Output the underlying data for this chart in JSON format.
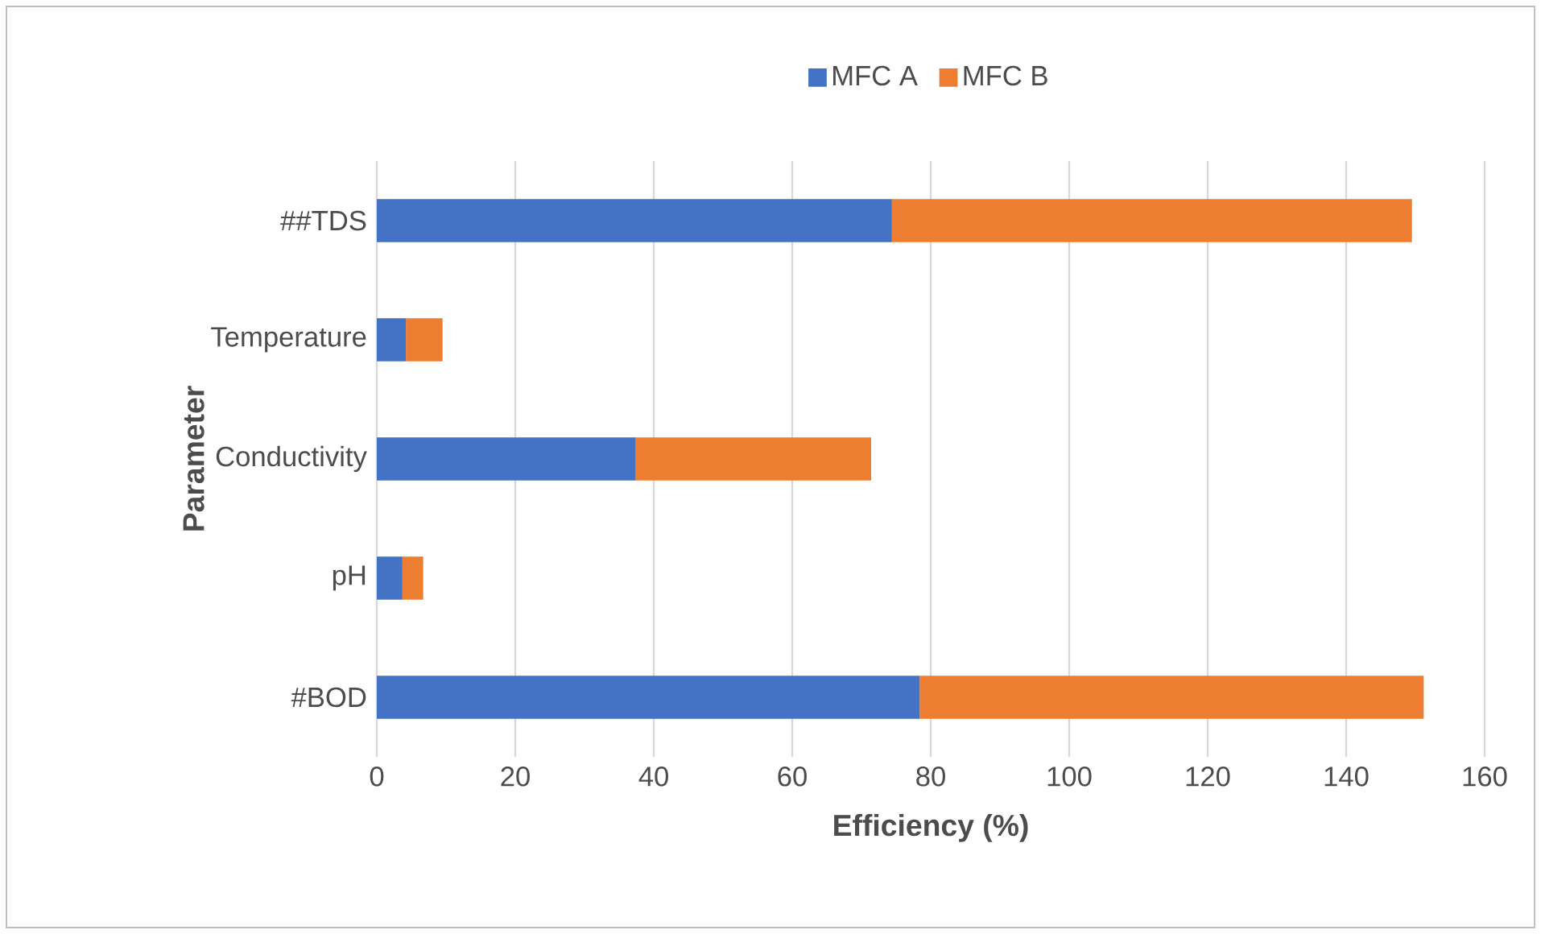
{
  "chart_data": {
    "type": "bar",
    "orientation": "horizontal",
    "stacked": true,
    "xlabel": "Efficiency (%)",
    "ylabel": "Parameter",
    "categories": [
      "##TDS",
      "Temperature",
      "Conductivity",
      "pH",
      "#BOD"
    ],
    "series": [
      {
        "name": "MFC A",
        "color": "#4472c4",
        "values": [
          74.4,
          4.2,
          37.4,
          3.7,
          78.4
        ]
      },
      {
        "name": "MFC B",
        "color": "#ed7d31",
        "values": [
          75.1,
          5.3,
          34.0,
          3.0,
          72.8
        ]
      }
    ],
    "xlim": [
      0,
      160
    ],
    "xticks": [
      0,
      20,
      40,
      60,
      80,
      100,
      120,
      140,
      160
    ],
    "grid": "x",
    "legend": "top"
  }
}
